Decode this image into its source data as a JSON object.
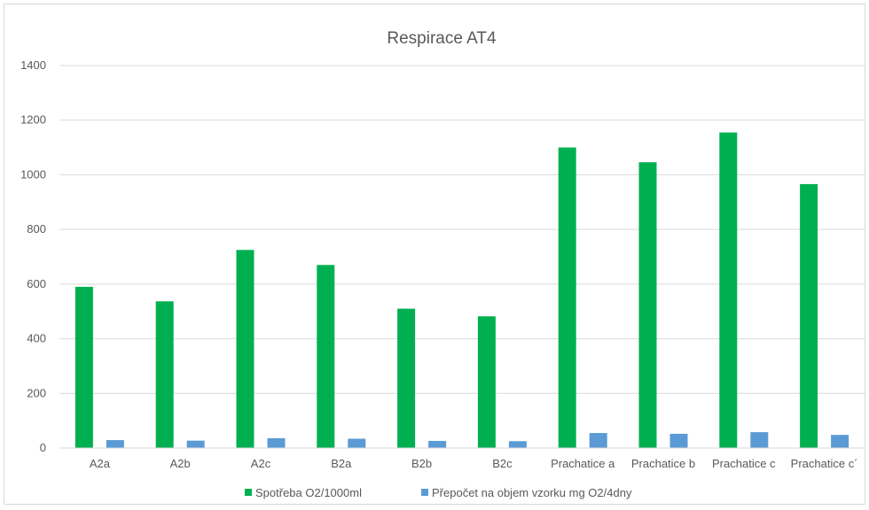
{
  "chart_data": {
    "type": "bar",
    "title": "Respirace AT4",
    "xlabel": "",
    "ylabel": "",
    "ylim": [
      0,
      1400
    ],
    "yticks": [
      0,
      200,
      400,
      600,
      800,
      1000,
      1200,
      1400
    ],
    "grid": true,
    "legend_position": "bottom",
    "categories": [
      "A2a",
      "A2b",
      "A2c",
      "B2a",
      "B2b",
      "B2c",
      "Prachatice a",
      "Prachatice b",
      "Prachatice c",
      "Prachatice c´"
    ],
    "series": [
      {
        "name": "Spotřeba O2/1000ml",
        "color": "#00b050",
        "values": [
          590,
          537,
          725,
          670,
          510,
          482,
          1100,
          1046,
          1155,
          966
        ]
      },
      {
        "name": "Přepočet na objem vzorku mg O2/4dny",
        "color": "#5b9bd5",
        "values": [
          29,
          27,
          36,
          34,
          26,
          25,
          55,
          52,
          58,
          48
        ]
      }
    ]
  }
}
